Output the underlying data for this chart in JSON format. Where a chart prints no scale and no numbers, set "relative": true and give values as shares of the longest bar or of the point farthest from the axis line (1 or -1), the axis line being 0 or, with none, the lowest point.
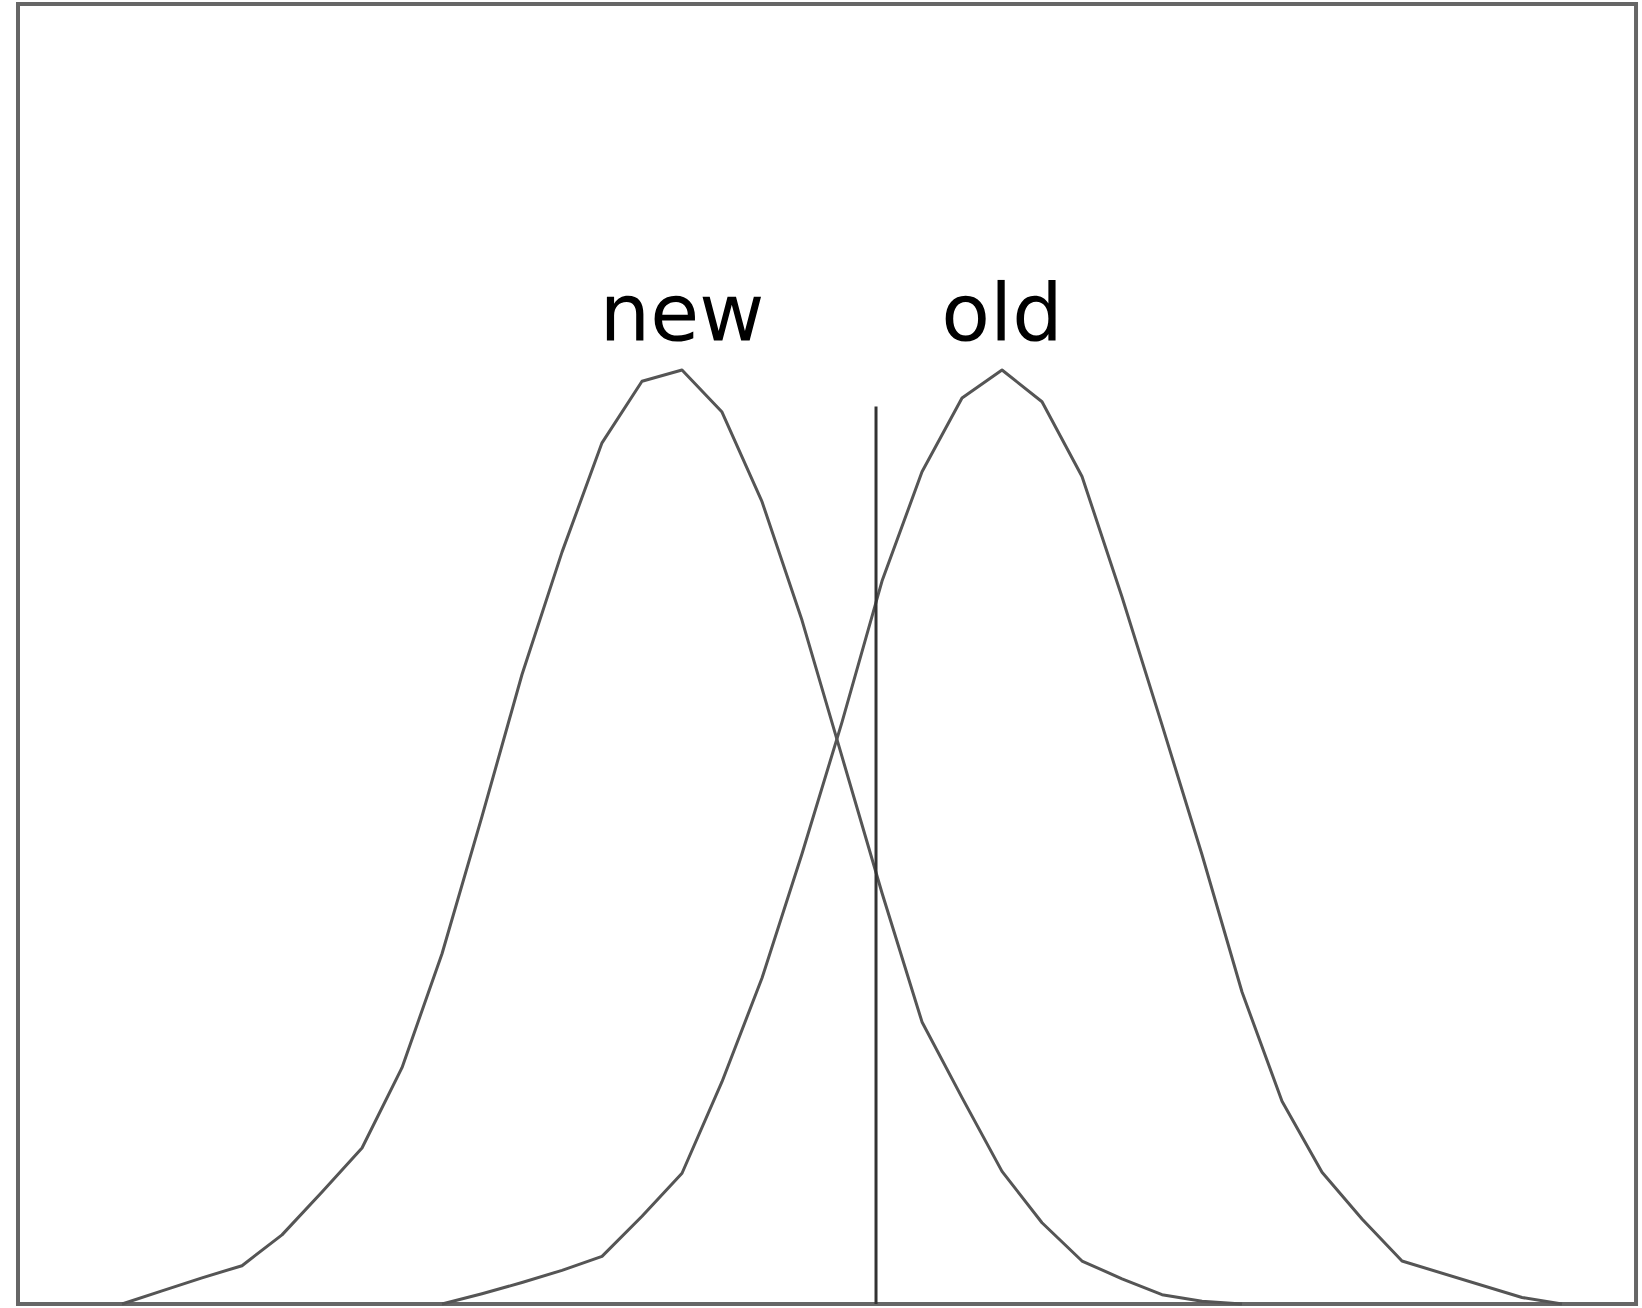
{
  "chart_data": {
    "type": "line",
    "relative": true,
    "categories": [
      null,
      null,
      null,
      null,
      null,
      null,
      null,
      null,
      null,
      null,
      null,
      null,
      null,
      null,
      null,
      null,
      null,
      null,
      null,
      null,
      null,
      null,
      null,
      null,
      null,
      null,
      null,
      null,
      null,
      null,
      null,
      null,
      null,
      null,
      null,
      null,
      null,
      null,
      null,
      null
    ],
    "annotations": [
      "new",
      "old"
    ],
    "series": [
      {
        "color": "#555555",
        "values": [
          null,
          null,
          0,
          0.014,
          0.028,
          0.041,
          0.074,
          0.12,
          0.167,
          0.253,
          0.375,
          0.522,
          0.674,
          0.805,
          0.922,
          0.988,
          1,
          0.955,
          0.859,
          0.732,
          0.586,
          0.44,
          0.302,
          0.221,
          0.142,
          0.087,
          0.046,
          0.027,
          0.01,
          0.003,
          0,
          null,
          null,
          null,
          null,
          null,
          null,
          null,
          null,
          null
        ]
      },
      {
        "color": "#555555",
        "values": [
          null,
          null,
          null,
          null,
          null,
          null,
          null,
          null,
          null,
          null,
          0,
          0.011,
          0.023,
          0.036,
          0.051,
          0.094,
          0.14,
          0.238,
          0.349,
          0.482,
          0.623,
          0.774,
          0.891,
          0.97,
          1,
          0.966,
          0.886,
          0.757,
          0.62,
          0.481,
          0.334,
          0.217,
          0.141,
          0.091,
          0.046,
          0.033,
          0.02,
          0.007,
          0,
          null
        ]
      }
    ]
  }
}
